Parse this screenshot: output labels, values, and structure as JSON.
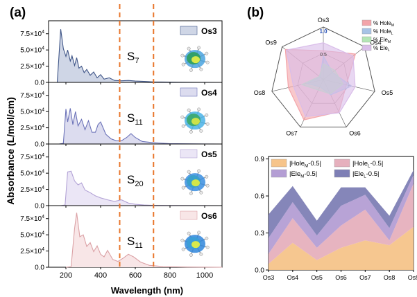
{
  "panels": {
    "a": {
      "label": "(a)",
      "ylabel": "Absorbance (L/mol/cm)",
      "xlabel": "Wavelength (nm)",
      "xticks": [
        "200",
        "400",
        "600",
        "800",
        "1000"
      ]
    },
    "b": {
      "label": "(b)"
    }
  },
  "colors": {
    "orange_dashed": "#e8762b",
    "axis": "#000000"
  },
  "chart_data": [
    {
      "type": "area",
      "panel": "a",
      "xlim": [
        100,
        1100
      ],
      "ylim": [
        0,
        95000
      ],
      "yticks": [
        "0.0",
        "2.5×10⁴",
        "5.0×10⁴",
        "7.5×10⁴"
      ],
      "ytick_values": [
        0,
        25000,
        50000,
        75000
      ],
      "vlines": [
        510,
        705
      ],
      "series": [
        {
          "name": "Os3",
          "state": "S",
          "state_sub": "7",
          "color": "#3f5587",
          "fill": "#cfd6e6",
          "x": [
            150,
            170,
            185,
            200,
            210,
            225,
            235,
            250,
            262,
            275,
            290,
            305,
            320,
            340,
            360,
            380,
            400,
            420,
            450,
            480,
            520,
            560,
            600,
            650,
            700,
            800,
            900,
            1000,
            1100
          ],
          "y": [
            0,
            82000,
            52000,
            40000,
            50000,
            33000,
            41000,
            26000,
            38000,
            22000,
            25000,
            15000,
            20000,
            11000,
            16000,
            7000,
            12000,
            5000,
            7000,
            3000,
            2500,
            3000,
            2000,
            1500,
            800,
            400,
            200,
            100,
            0
          ]
        },
        {
          "name": "Os4",
          "state": "S",
          "state_sub": "11",
          "color": "#6b72b8",
          "fill": "#dcdcef",
          "x": [
            160,
            185,
            200,
            210,
            225,
            240,
            255,
            270,
            290,
            310,
            330,
            350,
            370,
            385,
            400,
            430,
            460,
            490,
            520,
            550,
            575,
            600,
            640,
            700,
            800,
            1000,
            1100
          ],
          "y": [
            0,
            1000,
            54000,
            34000,
            55000,
            30000,
            50000,
            28000,
            38000,
            22000,
            36000,
            18000,
            18000,
            30000,
            34000,
            15000,
            8000,
            5000,
            5000,
            10000,
            16000,
            10000,
            4000,
            2000,
            500,
            100,
            0
          ]
        },
        {
          "name": "Os5",
          "state": "S",
          "state_sub": "20",
          "color": "#b3a3d6",
          "fill": "#ebe6f6",
          "x": [
            170,
            195,
            210,
            230,
            250,
            270,
            290,
            310,
            340,
            370,
            400,
            440,
            480,
            520,
            560,
            600,
            650,
            700,
            800,
            1000,
            1100
          ],
          "y": [
            0,
            1000,
            52000,
            53000,
            38000,
            32000,
            35000,
            24000,
            20000,
            15000,
            12000,
            9000,
            6500,
            9000,
            4000,
            2000,
            1000,
            500,
            200,
            100,
            0
          ]
        },
        {
          "name": "Os6",
          "state": "S",
          "state_sub": "11",
          "color": "#dba1a5",
          "fill": "#f8e6e7",
          "x": [
            200,
            230,
            250,
            262,
            280,
            300,
            320,
            340,
            360,
            380,
            400,
            420,
            440,
            470,
            500,
            530,
            560,
            590,
            630,
            680,
            760,
            900,
            1100
          ],
          "y": [
            0,
            1000,
            60000,
            84000,
            47000,
            50000,
            32000,
            38000,
            24000,
            33000,
            20000,
            16000,
            26000,
            12000,
            9000,
            14000,
            20000,
            16000,
            8000,
            3000,
            1000,
            300,
            0
          ]
        }
      ]
    },
    {
      "type": "radar",
      "panel": "b",
      "axes": [
        "Os3",
        "Os4",
        "Os5",
        "Os6",
        "Os7",
        "Os8",
        "Os9"
      ],
      "rmax": 1.0,
      "rticks": [
        "0.5",
        "1.0"
      ],
      "series": [
        {
          "name": "% Hole",
          "sub": "M",
          "color": "#f3a4a9",
          "values": [
            0.55,
            0.78,
            0.45,
            0.68,
            0.85,
            0.68,
            0.92
          ]
        },
        {
          "name": "% Hole",
          "sub": "L",
          "color": "#a7c3e6",
          "values": [
            0.45,
            0.22,
            0.55,
            0.32,
            0.15,
            0.32,
            0.08
          ]
        },
        {
          "name": "% Ele",
          "sub": "M",
          "color": "#b3e5b5",
          "values": [
            0.3,
            0.28,
            0.38,
            0.3,
            0.22,
            0.42,
            0.1
          ]
        },
        {
          "name": "% Ele",
          "sub": "L",
          "color": "#d9bde9",
          "values": [
            0.7,
            0.72,
            0.62,
            0.7,
            0.78,
            0.58,
            0.9
          ]
        }
      ]
    },
    {
      "type": "area",
      "panel": "b-bottom",
      "categories": [
        "Os3",
        "Os4",
        "Os5",
        "Os6",
        "Os7",
        "Os8",
        "Os9"
      ],
      "ylim": [
        0,
        0.92
      ],
      "yticks": [
        "0.0",
        "0.3",
        "0.6",
        "0.9"
      ],
      "ytick_values": [
        0,
        0.3,
        0.6,
        0.9
      ],
      "stacked": true,
      "series": [
        {
          "name": "|Hole",
          "sub": "M",
          "suffix": "-0.5|",
          "color": "#f6c48a",
          "values": [
            0.05,
            0.22,
            0.08,
            0.18,
            0.24,
            0.2,
            0.35
          ]
        },
        {
          "name": "|Hole",
          "sub": "L",
          "suffix": "-0.5|",
          "color": "#e6b0bd",
          "values": [
            0.08,
            0.2,
            0.1,
            0.18,
            0.25,
            0.04,
            0.35
          ]
        },
        {
          "name": "|Ele",
          "sub": "M",
          "suffix": "-0.5|",
          "color": "#b49ed4",
          "values": [
            0.13,
            0.13,
            0.1,
            0.16,
            0.12,
            0.1,
            0.07
          ]
        },
        {
          "name": "|Ele",
          "sub": "L",
          "suffix": "-0.5|",
          "color": "#7e7fb5",
          "values": [
            0.19,
            0.13,
            0.12,
            0.15,
            0.06,
            0.1,
            0.04
          ]
        }
      ]
    }
  ]
}
